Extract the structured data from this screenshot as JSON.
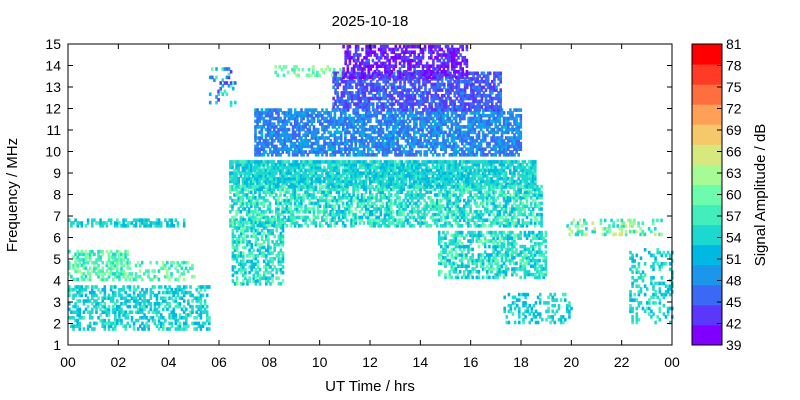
{
  "chart_data": {
    "type": "heatmap",
    "title": "2025-10-18",
    "xlabel": "UT Time / hrs",
    "ylabel": "Frequency / MHz",
    "xlim": [
      0,
      24
    ],
    "ylim": [
      1,
      15
    ],
    "x_ticks": [
      "00",
      "02",
      "04",
      "06",
      "08",
      "10",
      "12",
      "14",
      "16",
      "18",
      "20",
      "22",
      "00"
    ],
    "y_ticks": [
      "1",
      "2",
      "3",
      "4",
      "5",
      "6",
      "7",
      "8",
      "9",
      "10",
      "11",
      "12",
      "13",
      "14",
      "15"
    ],
    "colorbar": {
      "label": "Signal Amplitude / dB",
      "ticks": [
        "39",
        "42",
        "45",
        "48",
        "51",
        "54",
        "57",
        "60",
        "63",
        "66",
        "69",
        "72",
        "75",
        "78",
        "81"
      ],
      "range": [
        39,
        81
      ],
      "colors": [
        "#7f00ff",
        "#5a37fb",
        "#3b68f4",
        "#1c96ea",
        "#00b9e3",
        "#1cd8cf",
        "#42efbc",
        "#6cfcab",
        "#a6fb94",
        "#d6e87e",
        "#f5c86a",
        "#ffa057",
        "#ff6e3f",
        "#ff3a25",
        "#ff0000"
      ]
    },
    "grid": false,
    "regions": [
      {
        "t": [
          6.4,
          18.6
        ],
        "f": [
          8.3,
          9.6
        ],
        "a": [
          51,
          57
        ],
        "d": 0.85
      },
      {
        "t": [
          6.4,
          18.8
        ],
        "f": [
          6.5,
          8.4
        ],
        "a": [
          51,
          60
        ],
        "d": 0.6
      },
      {
        "t": [
          6.5,
          8.5
        ],
        "f": [
          3.8,
          6.8
        ],
        "a": [
          51,
          60
        ],
        "d": 0.55
      },
      {
        "t": [
          7.4,
          18.0
        ],
        "f": [
          9.8,
          11.9
        ],
        "a": [
          45,
          51
        ],
        "d": 0.7
      },
      {
        "t": [
          10.5,
          17.2
        ],
        "f": [
          11.9,
          13.6
        ],
        "a": [
          42,
          48
        ],
        "d": 0.7
      },
      {
        "t": [
          10.9,
          15.8
        ],
        "f": [
          13.4,
          14.9
        ],
        "a": [
          39,
          45
        ],
        "d": 0.6
      },
      {
        "t": [
          14.7,
          19.0
        ],
        "f": [
          4.1,
          6.3
        ],
        "a": [
          51,
          60
        ],
        "d": 0.55
      },
      {
        "t": [
          0.0,
          2.4
        ],
        "f": [
          4.0,
          5.4
        ],
        "a": [
          54,
          63
        ],
        "d": 0.55
      },
      {
        "t": [
          0.0,
          5.6
        ],
        "f": [
          1.7,
          3.7
        ],
        "a": [
          51,
          57
        ],
        "d": 0.45
      },
      {
        "t": [
          0.0,
          4.6
        ],
        "f": [
          6.5,
          6.8
        ],
        "a": [
          51,
          57
        ],
        "d": 0.5
      },
      {
        "t": [
          17.3,
          20.0
        ],
        "f": [
          2.0,
          3.4
        ],
        "a": [
          51,
          57
        ],
        "d": 0.3
      },
      {
        "t": [
          22.3,
          24.0
        ],
        "f": [
          2.0,
          5.4
        ],
        "a": [
          51,
          57
        ],
        "d": 0.3
      },
      {
        "t": [
          8.2,
          10.8
        ],
        "f": [
          13.5,
          14.0
        ],
        "a": [
          57,
          63
        ],
        "d": 0.35
      },
      {
        "t": [
          5.6,
          6.6
        ],
        "f": [
          12.1,
          13.8
        ],
        "a": [
          42,
          60
        ],
        "d": 0.25
      },
      {
        "t": [
          19.8,
          23.6
        ],
        "f": [
          6.1,
          6.8
        ],
        "a": [
          54,
          66
        ],
        "d": 0.3
      },
      {
        "t": [
          2.4,
          5.0
        ],
        "f": [
          4.0,
          4.9
        ],
        "a": [
          54,
          63
        ],
        "d": 0.3
      }
    ]
  }
}
